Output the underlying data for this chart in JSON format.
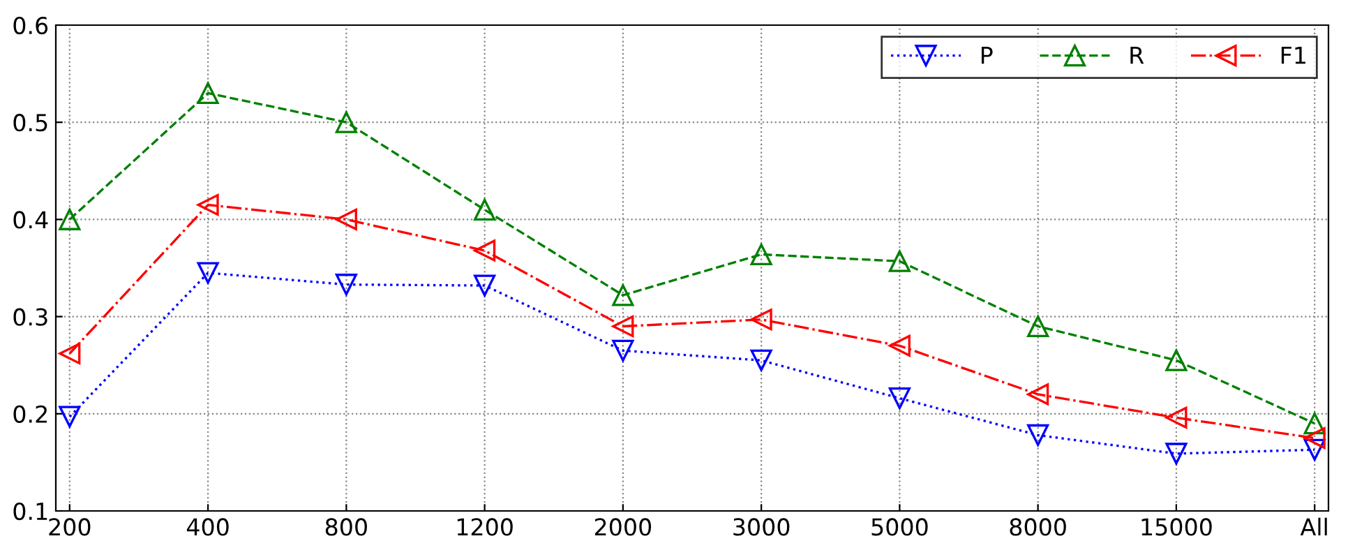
{
  "chart_data": {
    "type": "line",
    "categories": [
      "200",
      "400",
      "800",
      "1200",
      "2000",
      "3000",
      "5000",
      "8000",
      "15000",
      "All"
    ],
    "series": [
      {
        "name": "P",
        "color": "#0000ff",
        "line_style": "dotted",
        "marker": "triangle_down",
        "values": [
          0.197,
          0.345,
          0.333,
          0.332,
          0.265,
          0.255,
          0.216,
          0.178,
          0.159,
          0.163
        ]
      },
      {
        "name": "R",
        "color": "#008000",
        "line_style": "dashed",
        "marker": "triangle_up",
        "values": [
          0.4,
          0.53,
          0.5,
          0.41,
          0.322,
          0.364,
          0.357,
          0.29,
          0.255,
          0.19
        ]
      },
      {
        "name": "F1",
        "color": "#ff0000",
        "line_style": "dashdot",
        "marker": "triangle_left",
        "values": [
          0.262,
          0.415,
          0.4,
          0.368,
          0.29,
          0.297,
          0.27,
          0.22,
          0.196,
          0.175
        ]
      }
    ],
    "ylim": [
      0.1,
      0.6
    ],
    "yticks": [
      0.1,
      0.2,
      0.3,
      0.4,
      0.5,
      0.6
    ],
    "grid": true,
    "legend": "top right"
  }
}
